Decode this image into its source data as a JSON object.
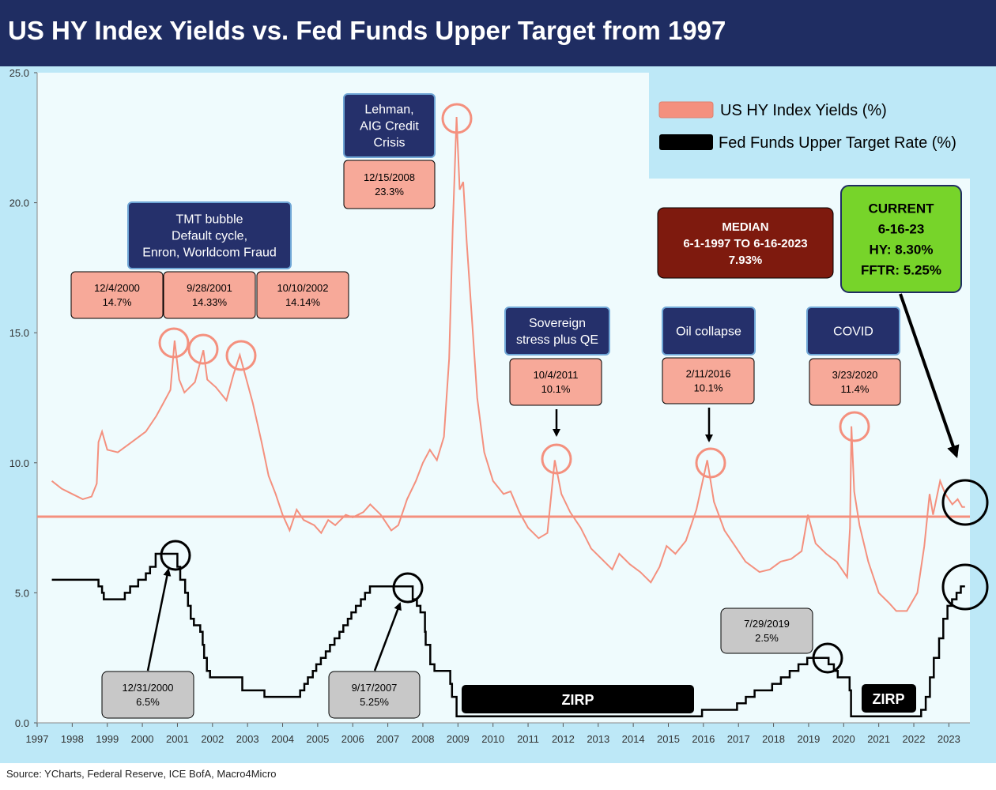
{
  "title": "US HY Index Yields vs. Fed Funds Upper Target from 1997",
  "source": "Source: YCharts, Federal Reserve, ICE BofA, Macro4Micro",
  "colors": {
    "header": "#1f2d62",
    "frame": "#bde8f7",
    "plot_bg": "#effbfd",
    "hy": "#f4907e",
    "fed": "#000000",
    "median_line": "#f4907e",
    "navy_box": "#25306b",
    "salmon_box": "#f7a999",
    "gray_box": "#c8c8c8",
    "median_box": "#7e1a0e",
    "current_box": "#77d42a"
  },
  "legend": {
    "items": [
      {
        "label": "US HY Index Yields (%)",
        "color": "#f4907e"
      },
      {
        "label": "Fed Funds Upper Target Rate (%)",
        "color": "#000000"
      }
    ]
  },
  "annotations": {
    "tmt": [
      "TMT bubble",
      "Default cycle,",
      "Enron, Worldcom Fraud"
    ],
    "lehman": [
      "Lehman,",
      "AIG Credit",
      "Crisis"
    ],
    "sovereign": [
      "Sovereign",
      "stress plus QE"
    ],
    "oil": [
      "Oil collapse"
    ],
    "covid": [
      "COVID"
    ],
    "peaks": [
      {
        "date": "12/4/2000",
        "value": "14.7%"
      },
      {
        "date": "9/28/2001",
        "value": "14.33%"
      },
      {
        "date": "10/10/2002",
        "value": "14.14%"
      },
      {
        "date": "12/15/2008",
        "value": "23.3%"
      },
      {
        "date": "10/4/2011",
        "value": "10.1%"
      },
      {
        "date": "2/11/2016",
        "value": "10.1%"
      },
      {
        "date": "3/23/2020",
        "value": "11.4%"
      }
    ],
    "fed_peaks": [
      {
        "date": "12/31/2000",
        "value": "6.5%"
      },
      {
        "date": "9/17/2007",
        "value": "5.25%"
      },
      {
        "date": "7/29/2019",
        "value": "2.5%"
      }
    ],
    "median": [
      "MEDIAN",
      "6-1-1997 TO 6-16-2023",
      "7.93%"
    ],
    "current": [
      "CURRENT",
      "6-16-23",
      "HY: 8.30%",
      "FFTR: 5.25%"
    ],
    "zirp": "ZIRP"
  },
  "chart_data": {
    "type": "line",
    "title": "US HY Index Yields vs. Fed Funds Upper Target from 1997",
    "ylim": [
      0,
      25
    ],
    "xlim": [
      1997,
      2023.6
    ],
    "y_ticks": [
      "0.0",
      "5.0",
      "10.0",
      "15.0",
      "20.0",
      "25.0"
    ],
    "x_ticks": [
      "1997",
      "1998",
      "1999",
      "2000",
      "2001",
      "2002",
      "2003",
      "2004",
      "2005",
      "2006",
      "2007",
      "2008",
      "2009",
      "2010",
      "2011",
      "2012",
      "2013",
      "2014",
      "2015",
      "2016",
      "2017",
      "2018",
      "2019",
      "2020",
      "2021",
      "2022",
      "2023"
    ],
    "median": 7.93,
    "series": [
      {
        "name": "US HY Index Yields (%)",
        "points": [
          [
            1997.42,
            9.3
          ],
          [
            1997.7,
            9.0
          ],
          [
            1998.0,
            8.8
          ],
          [
            1998.3,
            8.6
          ],
          [
            1998.55,
            8.7
          ],
          [
            1998.7,
            9.2
          ],
          [
            1998.75,
            10.8
          ],
          [
            1998.85,
            11.2
          ],
          [
            1999.0,
            10.5
          ],
          [
            1999.3,
            10.4
          ],
          [
            1999.6,
            10.7
          ],
          [
            1999.9,
            11.0
          ],
          [
            2000.1,
            11.2
          ],
          [
            2000.4,
            11.8
          ],
          [
            2000.6,
            12.3
          ],
          [
            2000.8,
            12.8
          ],
          [
            2000.92,
            14.7
          ],
          [
            2001.05,
            13.2
          ],
          [
            2001.2,
            12.7
          ],
          [
            2001.5,
            13.1
          ],
          [
            2001.74,
            14.33
          ],
          [
            2001.85,
            13.2
          ],
          [
            2002.1,
            12.9
          ],
          [
            2002.4,
            12.4
          ],
          [
            2002.6,
            13.4
          ],
          [
            2002.78,
            14.14
          ],
          [
            2002.95,
            13.3
          ],
          [
            2003.15,
            12.3
          ],
          [
            2003.4,
            10.8
          ],
          [
            2003.6,
            9.5
          ],
          [
            2003.8,
            8.8
          ],
          [
            2004.0,
            8.0
          ],
          [
            2004.2,
            7.4
          ],
          [
            2004.4,
            8.2
          ],
          [
            2004.6,
            7.8
          ],
          [
            2004.9,
            7.6
          ],
          [
            2005.1,
            7.3
          ],
          [
            2005.3,
            7.8
          ],
          [
            2005.5,
            7.6
          ],
          [
            2005.8,
            8.0
          ],
          [
            2006.0,
            7.9
          ],
          [
            2006.3,
            8.1
          ],
          [
            2006.5,
            8.4
          ],
          [
            2006.8,
            8.0
          ],
          [
            2007.1,
            7.4
          ],
          [
            2007.3,
            7.6
          ],
          [
            2007.55,
            8.6
          ],
          [
            2007.8,
            9.3
          ],
          [
            2008.0,
            10.0
          ],
          [
            2008.2,
            10.5
          ],
          [
            2008.4,
            10.1
          ],
          [
            2008.6,
            11.0
          ],
          [
            2008.75,
            14.0
          ],
          [
            2008.85,
            19.0
          ],
          [
            2008.96,
            23.3
          ],
          [
            2009.05,
            20.5
          ],
          [
            2009.15,
            20.8
          ],
          [
            2009.25,
            18.5
          ],
          [
            2009.4,
            15.5
          ],
          [
            2009.55,
            12.5
          ],
          [
            2009.75,
            10.4
          ],
          [
            2010.0,
            9.3
          ],
          [
            2010.3,
            8.8
          ],
          [
            2010.5,
            8.9
          ],
          [
            2010.75,
            8.1
          ],
          [
            2011.0,
            7.5
          ],
          [
            2011.3,
            7.1
          ],
          [
            2011.55,
            7.3
          ],
          [
            2011.76,
            10.1
          ],
          [
            2011.95,
            8.8
          ],
          [
            2012.2,
            8.1
          ],
          [
            2012.5,
            7.5
          ],
          [
            2012.8,
            6.7
          ],
          [
            2013.1,
            6.3
          ],
          [
            2013.4,
            5.9
          ],
          [
            2013.6,
            6.5
          ],
          [
            2013.9,
            6.1
          ],
          [
            2014.2,
            5.8
          ],
          [
            2014.5,
            5.4
          ],
          [
            2014.75,
            6.0
          ],
          [
            2014.95,
            6.8
          ],
          [
            2015.2,
            6.5
          ],
          [
            2015.5,
            7.0
          ],
          [
            2015.8,
            8.2
          ],
          [
            2016.11,
            10.1
          ],
          [
            2016.3,
            8.5
          ],
          [
            2016.6,
            7.4
          ],
          [
            2016.9,
            6.8
          ],
          [
            2017.2,
            6.2
          ],
          [
            2017.6,
            5.8
          ],
          [
            2017.9,
            5.9
          ],
          [
            2018.2,
            6.2
          ],
          [
            2018.5,
            6.3
          ],
          [
            2018.8,
            6.6
          ],
          [
            2018.98,
            8.0
          ],
          [
            2019.2,
            6.9
          ],
          [
            2019.5,
            6.5
          ],
          [
            2019.8,
            6.2
          ],
          [
            2020.1,
            5.6
          ],
          [
            2020.18,
            7.5
          ],
          [
            2020.22,
            11.4
          ],
          [
            2020.3,
            8.9
          ],
          [
            2020.45,
            7.6
          ],
          [
            2020.7,
            6.2
          ],
          [
            2021.0,
            5.0
          ],
          [
            2021.3,
            4.6
          ],
          [
            2021.5,
            4.3
          ],
          [
            2021.8,
            4.3
          ],
          [
            2022.1,
            5.0
          ],
          [
            2022.3,
            6.8
          ],
          [
            2022.45,
            8.8
          ],
          [
            2022.55,
            8.0
          ],
          [
            2022.75,
            9.3
          ],
          [
            2022.9,
            8.8
          ],
          [
            2023.1,
            8.4
          ],
          [
            2023.25,
            8.6
          ],
          [
            2023.38,
            8.3
          ],
          [
            2023.46,
            8.3
          ]
        ]
      },
      {
        "name": "Fed Funds Upper Target Rate (%)",
        "points": [
          [
            1997.42,
            5.5
          ],
          [
            1998.75,
            5.5
          ],
          [
            1998.75,
            5.25
          ],
          [
            1998.85,
            5.25
          ],
          [
            1998.85,
            5.0
          ],
          [
            1998.9,
            5.0
          ],
          [
            1998.9,
            4.75
          ],
          [
            1999.5,
            4.75
          ],
          [
            1999.5,
            5.0
          ],
          [
            1999.65,
            5.0
          ],
          [
            1999.65,
            5.25
          ],
          [
            1999.88,
            5.25
          ],
          [
            1999.88,
            5.5
          ],
          [
            2000.1,
            5.5
          ],
          [
            2000.1,
            5.75
          ],
          [
            2000.22,
            5.75
          ],
          [
            2000.22,
            6.0
          ],
          [
            2000.38,
            6.0
          ],
          [
            2000.38,
            6.5
          ],
          [
            2001.0,
            6.5
          ],
          [
            2001.0,
            6.0
          ],
          [
            2001.08,
            6.0
          ],
          [
            2001.08,
            5.5
          ],
          [
            2001.22,
            5.5
          ],
          [
            2001.22,
            5.0
          ],
          [
            2001.3,
            5.0
          ],
          [
            2001.3,
            4.5
          ],
          [
            2001.38,
            4.5
          ],
          [
            2001.38,
            4.0
          ],
          [
            2001.47,
            4.0
          ],
          [
            2001.47,
            3.75
          ],
          [
            2001.65,
            3.75
          ],
          [
            2001.65,
            3.5
          ],
          [
            2001.72,
            3.5
          ],
          [
            2001.72,
            3.0
          ],
          [
            2001.76,
            3.0
          ],
          [
            2001.76,
            2.5
          ],
          [
            2001.84,
            2.5
          ],
          [
            2001.84,
            2.0
          ],
          [
            2001.93,
            2.0
          ],
          [
            2001.93,
            1.75
          ],
          [
            2002.85,
            1.75
          ],
          [
            2002.85,
            1.25
          ],
          [
            2003.48,
            1.25
          ],
          [
            2003.48,
            1.0
          ],
          [
            2004.5,
            1.0
          ],
          [
            2004.5,
            1.25
          ],
          [
            2004.62,
            1.25
          ],
          [
            2004.62,
            1.5
          ],
          [
            2004.72,
            1.5
          ],
          [
            2004.72,
            1.75
          ],
          [
            2004.86,
            1.75
          ],
          [
            2004.86,
            2.0
          ],
          [
            2004.96,
            2.0
          ],
          [
            2004.96,
            2.25
          ],
          [
            2005.09,
            2.25
          ],
          [
            2005.09,
            2.5
          ],
          [
            2005.23,
            2.5
          ],
          [
            2005.23,
            2.75
          ],
          [
            2005.35,
            2.75
          ],
          [
            2005.35,
            3.0
          ],
          [
            2005.48,
            3.0
          ],
          [
            2005.48,
            3.25
          ],
          [
            2005.62,
            3.25
          ],
          [
            2005.62,
            3.5
          ],
          [
            2005.73,
            3.5
          ],
          [
            2005.73,
            3.75
          ],
          [
            2005.86,
            3.75
          ],
          [
            2005.86,
            4.0
          ],
          [
            2005.96,
            4.0
          ],
          [
            2005.96,
            4.25
          ],
          [
            2006.09,
            4.25
          ],
          [
            2006.09,
            4.5
          ],
          [
            2006.23,
            4.5
          ],
          [
            2006.23,
            4.75
          ],
          [
            2006.35,
            4.75
          ],
          [
            2006.35,
            5.0
          ],
          [
            2006.49,
            5.0
          ],
          [
            2006.49,
            5.25
          ],
          [
            2007.71,
            5.25
          ],
          [
            2007.71,
            4.75
          ],
          [
            2007.83,
            4.75
          ],
          [
            2007.83,
            4.5
          ],
          [
            2007.93,
            4.5
          ],
          [
            2007.93,
            4.25
          ],
          [
            2008.06,
            4.25
          ],
          [
            2008.06,
            3.5
          ],
          [
            2008.08,
            3.5
          ],
          [
            2008.08,
            3.0
          ],
          [
            2008.21,
            3.0
          ],
          [
            2008.21,
            2.25
          ],
          [
            2008.33,
            2.25
          ],
          [
            2008.33,
            2.0
          ],
          [
            2008.78,
            2.0
          ],
          [
            2008.78,
            1.5
          ],
          [
            2008.83,
            1.5
          ],
          [
            2008.83,
            1.0
          ],
          [
            2008.96,
            1.0
          ],
          [
            2008.96,
            0.25
          ],
          [
            2015.96,
            0.25
          ],
          [
            2015.96,
            0.5
          ],
          [
            2016.96,
            0.5
          ],
          [
            2016.96,
            0.75
          ],
          [
            2017.21,
            0.75
          ],
          [
            2017.21,
            1.0
          ],
          [
            2017.46,
            1.0
          ],
          [
            2017.46,
            1.25
          ],
          [
            2017.96,
            1.25
          ],
          [
            2017.96,
            1.5
          ],
          [
            2018.21,
            1.5
          ],
          [
            2018.21,
            1.75
          ],
          [
            2018.46,
            1.75
          ],
          [
            2018.46,
            2.0
          ],
          [
            2018.71,
            2.0
          ],
          [
            2018.71,
            2.25
          ],
          [
            2018.96,
            2.25
          ],
          [
            2018.96,
            2.5
          ],
          [
            2019.57,
            2.5
          ],
          [
            2019.57,
            2.25
          ],
          [
            2019.72,
            2.25
          ],
          [
            2019.72,
            2.0
          ],
          [
            2019.83,
            2.0
          ],
          [
            2019.83,
            1.75
          ],
          [
            2020.17,
            1.75
          ],
          [
            2020.17,
            1.25
          ],
          [
            2020.21,
            1.25
          ],
          [
            2020.21,
            0.25
          ],
          [
            2022.21,
            0.25
          ],
          [
            2022.21,
            0.5
          ],
          [
            2022.34,
            0.5
          ],
          [
            2022.34,
            1.0
          ],
          [
            2022.46,
            1.0
          ],
          [
            2022.46,
            1.75
          ],
          [
            2022.57,
            1.75
          ],
          [
            2022.57,
            2.5
          ],
          [
            2022.72,
            2.5
          ],
          [
            2022.72,
            3.25
          ],
          [
            2022.84,
            3.25
          ],
          [
            2022.84,
            4.0
          ],
          [
            2022.96,
            4.0
          ],
          [
            2022.96,
            4.5
          ],
          [
            2023.09,
            4.5
          ],
          [
            2023.09,
            4.75
          ],
          [
            2023.22,
            4.75
          ],
          [
            2023.22,
            5.0
          ],
          [
            2023.34,
            5.0
          ],
          [
            2023.34,
            5.25
          ],
          [
            2023.46,
            5.25
          ]
        ]
      }
    ]
  }
}
